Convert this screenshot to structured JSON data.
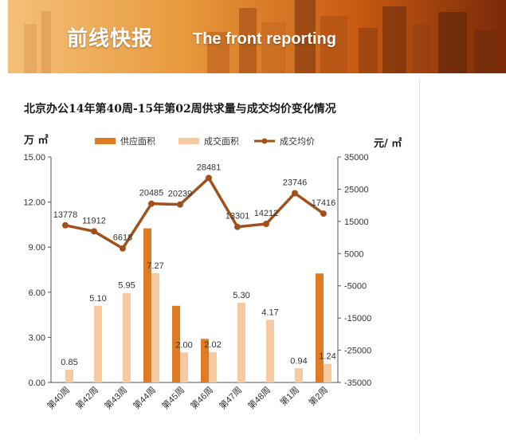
{
  "banner": {
    "title": "前线快报",
    "subtitle": "The front reporting"
  },
  "chart_data": {
    "type": "bar",
    "title": "北京办公14年第40周-15年第02周供求量与成交均价变化情况",
    "left_axis_unit": "万 ㎡",
    "right_axis_unit": "元/ ㎡",
    "categories": [
      "第40周",
      "第42周",
      "第43周",
      "第44周",
      "第45周",
      "第46周",
      "第47周",
      "第48周",
      "第1周",
      "第2周"
    ],
    "y_left": {
      "min": 0,
      "max": 15,
      "ticks": [
        "0.00",
        "3.00",
        "6.00",
        "9.00",
        "12.00",
        "15.00"
      ]
    },
    "y_right": {
      "min": -35000,
      "max": 35000,
      "ticks": [
        "-35000",
        "-25000",
        "-15000",
        "-5000",
        "5000",
        "15000",
        "25000",
        "35000"
      ]
    },
    "legend_position": "top",
    "grid": false,
    "series": [
      {
        "name": "供应面积",
        "type": "bar",
        "axis": "left",
        "color": "#e07b24",
        "values": [
          0,
          0,
          0,
          10.25,
          5.1,
          2.9,
          0,
          0,
          0,
          7.25
        ]
      },
      {
        "name": "成交面积",
        "type": "bar",
        "axis": "left",
        "color": "#f7c9a0",
        "values": [
          0.85,
          5.1,
          5.95,
          7.27,
          2.0,
          2.02,
          5.3,
          4.17,
          0.94,
          1.24
        ],
        "labels": [
          "0.85",
          "5.10",
          "5.95",
          "7.27",
          "2.00",
          "2.02",
          "5.30",
          "4.17",
          "0.94",
          "1.24"
        ]
      },
      {
        "name": "成交均价",
        "type": "line",
        "axis": "right",
        "color": "#a0521c",
        "values": [
          13778,
          11912,
          6618,
          20485,
          20239,
          28481,
          13301,
          14212,
          23746,
          17416
        ],
        "labels": [
          "13778",
          "11912",
          "6618",
          "20485",
          "20239",
          "28481",
          "13301",
          "14212",
          "23746",
          "17416"
        ]
      }
    ]
  }
}
